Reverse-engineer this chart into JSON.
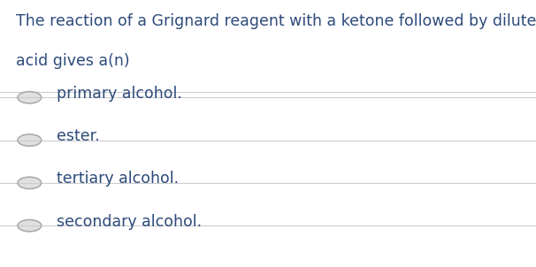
{
  "question_line1": "The reaction of a Grignard reagent with a ketone followed by dilute",
  "question_line2": "acid gives a(n)",
  "options": [
    "primary alcohol.",
    "ester.",
    "tertiary alcohol.",
    "secondary alcohol."
  ],
  "bg_color": "#ffffff",
  "text_color": "#2d4a7a",
  "question_fontsize": 12.5,
  "option_fontsize": 12.5,
  "separator_color": "#cccccc",
  "circle_edge_color": "#aaaaaa",
  "circle_fill_color": "#e0e0e0"
}
